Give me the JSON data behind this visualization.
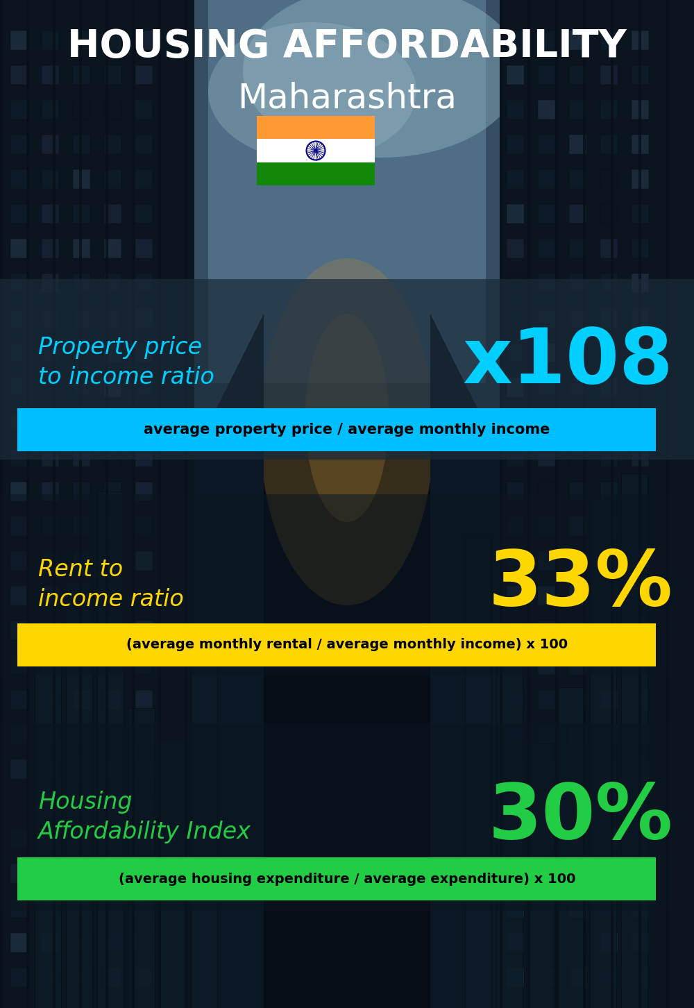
{
  "title_line1": "HOUSING AFFORDABILITY",
  "title_line2": "Maharashtra",
  "background_color": "#060d15",
  "section1_label": "Property price\nto income ratio",
  "section1_value": "x108",
  "section1_label_color": "#00cfff",
  "section1_value_color": "#00cfff",
  "section1_note": "average property price / average monthly income",
  "section1_note_bg": "#00bfff",
  "section1_note_color": "#000000",
  "section2_label": "Rent to\nincome ratio",
  "section2_value": "33%",
  "section2_label_color": "#ffd700",
  "section2_value_color": "#ffd700",
  "section2_note": "(average monthly rental / average monthly income) x 100",
  "section2_note_bg": "#ffd700",
  "section2_note_color": "#000000",
  "section3_label": "Housing\nAffordability Index",
  "section3_value": "30%",
  "section3_label_color": "#22cc44",
  "section3_value_color": "#22cc44",
  "section3_note": "(average housing expenditure / average expenditure) x 100",
  "section3_note_bg": "#22cc44",
  "section3_note_color": "#000000",
  "flag_saffron": "#ff9933",
  "flag_white": "#ffffff",
  "flag_green": "#138808",
  "flag_chakra_color": "#000080"
}
